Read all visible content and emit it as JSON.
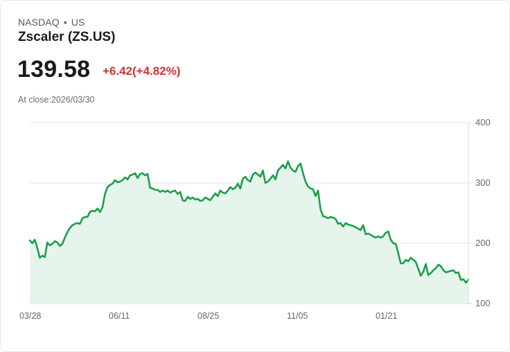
{
  "header": {
    "exchange": "NASDAQ",
    "separator": "•",
    "region": "US",
    "title": "Zscaler (ZS.US)",
    "price": "139.58",
    "change": "+6.42(+4.82%)",
    "close_label": "At close:2026/03/30"
  },
  "colors": {
    "line": "#1a9e4a",
    "fill": "#e6f5ec",
    "change_negative_or_positive_text": "#d63031",
    "grid": "#e3e3e3"
  },
  "chart_data": {
    "type": "area",
    "title": "Zscaler (ZS.US)",
    "xlabel": "",
    "ylabel": "",
    "ylim": [
      100,
      400
    ],
    "yticks": [
      400,
      300,
      200,
      100
    ],
    "xticks": [
      "03/28",
      "06/11",
      "08/25",
      "11/05",
      "01/21"
    ],
    "grid": true,
    "legend": "none",
    "series": [
      {
        "name": "ZS.US",
        "values": [
          204.6,
          200.0,
          205.7,
          191.9,
          175.9,
          179.3,
          177.0,
          201.1,
          196.6,
          198.9,
          203.4,
          201.1,
          195.4,
          198.9,
          209.2,
          218.4,
          225.3,
          229.9,
          232.2,
          233.3,
          232.2,
          241.4,
          243.7,
          243.7,
          251.7,
          254.0,
          252.9,
          257.5,
          251.7,
          259.8,
          281.6,
          293.1,
          296.6,
          298.9,
          304.6,
          301.1,
          302.3,
          304.6,
          309.2,
          305.7,
          312.6,
          313.8,
          316.1,
          308.0,
          314.9,
          316.1,
          312.6,
          314.9,
          291.9,
          290.8,
          288.5,
          288.5,
          285.1,
          287.4,
          285.1,
          287.4,
          283.9,
          286.2,
          287.4,
          281.6,
          285.1,
          271.3,
          270.1,
          277.0,
          273.6,
          275.9,
          272.4,
          273.6,
          270.1,
          271.3,
          275.9,
          273.6,
          271.3,
          277.0,
          282.8,
          278.2,
          287.4,
          283.9,
          282.8,
          287.4,
          293.1,
          289.7,
          292.0,
          298.9,
          290.8,
          306.9,
          310.3,
          304.6,
          302.3,
          313.8,
          317.2,
          313.8,
          310.3,
          320.7,
          300.0,
          302.3,
          306.9,
          312.6,
          305.7,
          320.7,
          325.3,
          329.9,
          324.1,
          335.6,
          325.3,
          320.7,
          318.4,
          327.6,
          332.2,
          316.1,
          302.3,
          294.3,
          290.8,
          289.7,
          278.2,
          287.4,
          256.3,
          244.8,
          243.7,
          241.4,
          243.7,
          242.5,
          240.2,
          232.2,
          233.3,
          227.6,
          233.3,
          231.0,
          229.9,
          228.7,
          226.4,
          224.1,
          221.8,
          229.9,
          214.9,
          216.1,
          213.8,
          211.5,
          209.2,
          211.5,
          209.2,
          211.5,
          217.2,
          219.5,
          205.7,
          200.0,
          198.9,
          183.9,
          166.7,
          166.7,
          172.4,
          170.1,
          175.9,
          172.4,
          169.0,
          157.5,
          146.0,
          152.9,
          165.5,
          147.1,
          150.6,
          155.2,
          158.6,
          164.4,
          162.1,
          155.2,
          151.7,
          152.9,
          154.0,
          155.2,
          150.6,
          151.7,
          139.1,
          140.2,
          134.5,
          139.6
        ]
      }
    ],
    "x_range": [
      "2025/03/28",
      "2026/03/30"
    ]
  }
}
